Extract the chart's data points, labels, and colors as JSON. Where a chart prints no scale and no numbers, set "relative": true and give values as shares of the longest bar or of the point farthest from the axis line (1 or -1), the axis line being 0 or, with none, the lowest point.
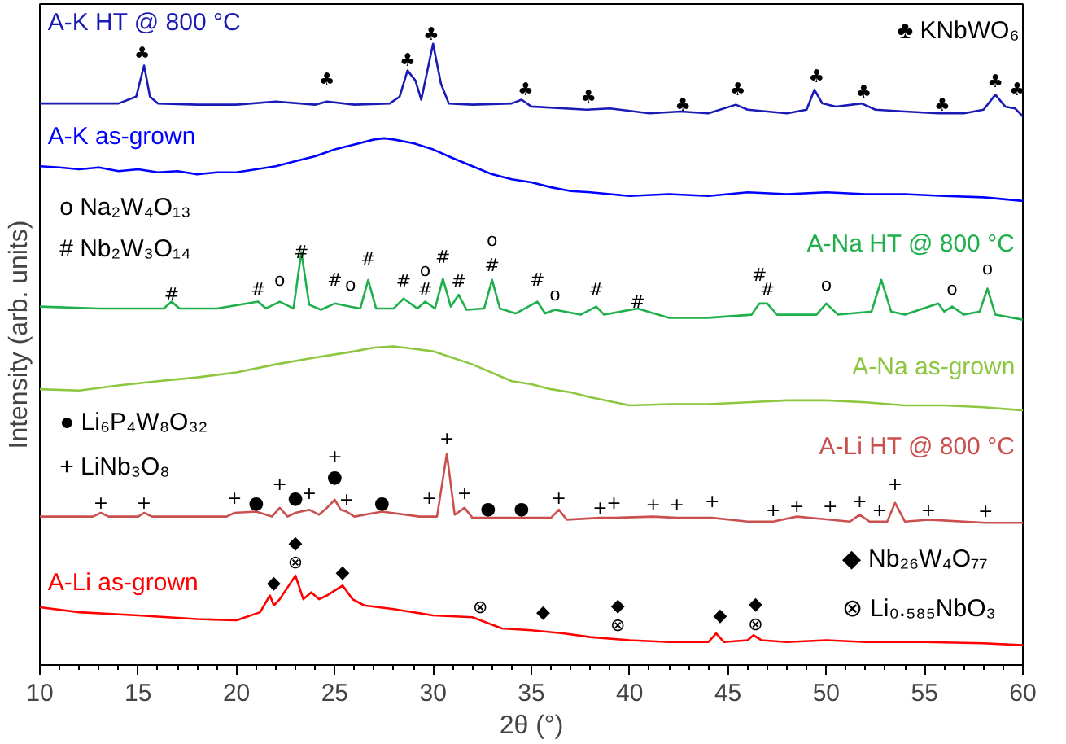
{
  "chart_data": {
    "type": "line",
    "relative": true,
    "xlabel": "2θ (°)",
    "ylabel": "Intensity (arb. units)",
    "xlim": [
      10,
      60
    ],
    "xticks": [
      10,
      15,
      20,
      25,
      30,
      35,
      40,
      45,
      50,
      55,
      60
    ],
    "series": [
      {
        "name": "A-K HT @ 800 °C",
        "color": "#1a1ab4",
        "x": [
          10,
          12,
          14,
          14.9,
          15.3,
          15.6,
          16,
          18,
          20,
          22,
          24,
          24.6,
          26,
          27.8,
          28.3,
          28.7,
          29.1,
          29.4,
          30.0,
          30.4,
          30.8,
          32,
          34,
          34.5,
          35,
          37.8,
          39,
          41,
          42.6,
          44,
          45.4,
          46,
          48,
          49,
          49.4,
          49.8,
          50.5,
          51.8,
          52.5,
          54,
          55.7,
          57,
          58,
          58.6,
          59.1,
          59.6,
          60
        ],
        "values": [
          0.904,
          0.904,
          0.904,
          0.915,
          0.965,
          0.915,
          0.904,
          0.902,
          0.902,
          0.907,
          0.902,
          0.907,
          0.902,
          0.904,
          0.915,
          0.957,
          0.941,
          0.91,
          1.0,
          0.936,
          0.904,
          0.902,
          0.904,
          0.91,
          0.899,
          0.894,
          0.896,
          0.888,
          0.891,
          0.888,
          0.902,
          0.894,
          0.888,
          0.894,
          0.926,
          0.904,
          0.899,
          0.904,
          0.894,
          0.891,
          0.888,
          0.888,
          0.894,
          0.918,
          0.899,
          0.896,
          0.883
        ]
      },
      {
        "name": "A-K as-grown",
        "color": "#0000ff",
        "x": [
          10,
          11,
          12,
          13,
          14,
          15,
          16,
          17,
          18,
          19,
          20,
          21,
          22,
          23,
          24,
          25,
          26,
          27,
          27.5,
          28,
          29,
          30,
          31,
          32,
          33,
          34,
          35,
          36,
          37,
          38,
          39,
          40,
          42,
          44,
          46,
          48,
          50,
          52,
          54,
          56,
          58,
          60
        ],
        "values": [
          0.803,
          0.801,
          0.798,
          0.801,
          0.795,
          0.798,
          0.793,
          0.795,
          0.79,
          0.793,
          0.793,
          0.798,
          0.803,
          0.811,
          0.819,
          0.83,
          0.838,
          0.846,
          0.848,
          0.846,
          0.84,
          0.83,
          0.816,
          0.803,
          0.79,
          0.782,
          0.777,
          0.769,
          0.763,
          0.761,
          0.758,
          0.755,
          0.758,
          0.755,
          0.761,
          0.758,
          0.761,
          0.758,
          0.758,
          0.755,
          0.753,
          0.747
        ]
      },
      {
        "name": "A-Na HT @ 800 °C",
        "color": "#1fb04c",
        "x": [
          10,
          13,
          16.3,
          16.7,
          17.1,
          19,
          21.1,
          21.5,
          22.2,
          22.9,
          23.3,
          23.7,
          24.3,
          25.0,
          25.8,
          26.3,
          26.7,
          27.1,
          28.0,
          28.5,
          29.2,
          29.6,
          30.1,
          30.5,
          30.9,
          31.3,
          31.7,
          32.6,
          33.0,
          33.4,
          34.2,
          35.3,
          35.7,
          36.2,
          37.5,
          38.3,
          38.7,
          40.4,
          42,
          44,
          46.2,
          46.6,
          47.0,
          47.5,
          49.5,
          50.0,
          50.6,
          52.3,
          52.8,
          53.3,
          54,
          55.7,
          56.0,
          56.4,
          57,
          57.8,
          58.2,
          58.6,
          60
        ],
        "values": [
          0.577,
          0.574,
          0.574,
          0.585,
          0.574,
          0.574,
          0.585,
          0.574,
          0.585,
          0.574,
          0.665,
          0.58,
          0.572,
          0.582,
          0.577,
          0.574,
          0.62,
          0.574,
          0.574,
          0.59,
          0.574,
          0.585,
          0.574,
          0.622,
          0.577,
          0.596,
          0.572,
          0.574,
          0.62,
          0.574,
          0.566,
          0.585,
          0.566,
          0.572,
          0.564,
          0.577,
          0.564,
          0.574,
          0.559,
          0.559,
          0.564,
          0.582,
          0.582,
          0.564,
          0.564,
          0.582,
          0.564,
          0.569,
          0.62,
          0.569,
          0.564,
          0.582,
          0.569,
          0.577,
          0.564,
          0.569,
          0.606,
          0.564,
          0.556
        ]
      },
      {
        "name": "A-Na as-grown",
        "color": "#8dc63f",
        "x": [
          10,
          12,
          14,
          16,
          18,
          20,
          22,
          24,
          26,
          27,
          28,
          30,
          32,
          34,
          35,
          36,
          37,
          38,
          40,
          42,
          44,
          46,
          48,
          50,
          52,
          54,
          56,
          58,
          60
        ],
        "values": [
          0.444,
          0.442,
          0.45,
          0.457,
          0.463,
          0.471,
          0.484,
          0.495,
          0.505,
          0.511,
          0.513,
          0.505,
          0.484,
          0.457,
          0.452,
          0.444,
          0.439,
          0.431,
          0.418,
          0.42,
          0.42,
          0.423,
          0.426,
          0.426,
          0.423,
          0.418,
          0.418,
          0.415,
          0.41
        ]
      },
      {
        "name": "A-Li HT @ 800 °C",
        "color": "#c9504f",
        "x": [
          10,
          12.7,
          13.1,
          13.5,
          15,
          15.3,
          15.7,
          19.5,
          19.9,
          21.0,
          21.8,
          22.2,
          22.6,
          23.0,
          23.7,
          24.2,
          24.6,
          25.0,
          25.3,
          25.6,
          26,
          27.4,
          29.3,
          30.2,
          30.7,
          31.1,
          31.6,
          32,
          34,
          36,
          36.4,
          36.8,
          38.5,
          39.2,
          41.2,
          42.4,
          44.2,
          46,
          47.3,
          48.5,
          50.2,
          51.2,
          51.7,
          52.2,
          52.7,
          53.1,
          53.5,
          54,
          55.2,
          58.1,
          60
        ],
        "values": [
          0.239,
          0.239,
          0.245,
          0.239,
          0.239,
          0.245,
          0.239,
          0.239,
          0.245,
          0.247,
          0.239,
          0.253,
          0.239,
          0.245,
          0.25,
          0.242,
          0.253,
          0.266,
          0.25,
          0.247,
          0.239,
          0.247,
          0.239,
          0.239,
          0.34,
          0.242,
          0.253,
          0.237,
          0.237,
          0.237,
          0.25,
          0.234,
          0.237,
          0.237,
          0.239,
          0.237,
          0.237,
          0.231,
          0.231,
          0.239,
          0.234,
          0.231,
          0.242,
          0.231,
          0.231,
          0.231,
          0.261,
          0.231,
          0.234,
          0.229,
          0.229
        ]
      },
      {
        "name": "A-Li as-grown",
        "color": "#ff0000",
        "x": [
          10,
          12,
          15,
          18,
          20,
          21.2,
          21.7,
          21.9,
          22.2,
          22.6,
          23.0,
          23.4,
          23.8,
          24.2,
          24.6,
          25.0,
          25.4,
          25.9,
          26.5,
          28,
          30,
          32,
          33.5,
          35,
          36.6,
          38,
          40,
          42,
          44,
          44.4,
          44.8,
          46,
          46.3,
          46.7,
          48,
          50,
          52,
          55,
          58,
          60
        ],
        "values": [
          0.093,
          0.085,
          0.08,
          0.074,
          0.072,
          0.085,
          0.112,
          0.096,
          0.106,
          0.125,
          0.144,
          0.106,
          0.117,
          0.106,
          0.112,
          0.12,
          0.128,
          0.106,
          0.096,
          0.09,
          0.08,
          0.077,
          0.059,
          0.056,
          0.051,
          0.045,
          0.04,
          0.037,
          0.037,
          0.051,
          0.037,
          0.04,
          0.048,
          0.04,
          0.037,
          0.04,
          0.037,
          0.037,
          0.035,
          0.032
        ]
      }
    ],
    "annotations": [
      "♣   KNbWO₆",
      "o   Na₂W₄O₁₃",
      "#   Nb₂W₃O₁₄",
      "●   Li₆P₄W₈O₃₂",
      "+   LiNb₃O₈",
      "◆   Nb₂₆W₄O₇₇",
      "⊗   Li₀.₅₈₅NbO₃",
      "♣",
      "♣",
      "♣",
      "♣",
      "♣",
      "♣",
      "♣",
      "♣",
      "♣",
      "♣",
      "♣",
      "♣",
      "♣",
      "#",
      "#",
      "o",
      "#",
      "#",
      "o",
      "#",
      "#",
      "o",
      "#",
      "#",
      "#",
      "o",
      "#",
      "#",
      "o",
      "#",
      "#",
      "#",
      "#",
      "o",
      "o",
      "o",
      "+",
      "+",
      "+",
      "●",
      "+",
      "●",
      "+",
      "+",
      "●",
      "+",
      "●",
      "+",
      "+",
      "+",
      "●",
      "●",
      "+",
      "+",
      "+",
      "+",
      "+",
      "+",
      "+",
      "+",
      "+",
      "+",
      "+",
      "+",
      "+",
      "+",
      "◆",
      "◆",
      "⊗",
      "◆",
      "⊗",
      "◆",
      "◆",
      "⊗",
      "◆",
      "◆",
      "⊗"
    ]
  }
}
